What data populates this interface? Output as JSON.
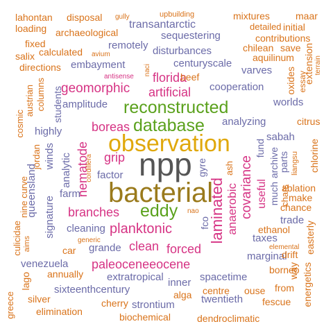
{
  "colors": {
    "orange": "#d9731a",
    "purple": "#6b6ba8",
    "magenta": "#d63384",
    "green": "#5aa11c",
    "gold": "#e0a80c",
    "gray": "#555555",
    "brown": "#9a7a1c"
  },
  "words": {
    "npp": "npp",
    "bacterial": "bacterial",
    "observation": "observation",
    "reconstructed": "reconstructed",
    "database": "database",
    "eddy": "eddy",
    "planktonic": "planktonic",
    "laminated": "laminated",
    "covariance": "covariance",
    "geomorphic": "geomorphic",
    "florida": "florida",
    "artificial": "artificial",
    "boreas": "boreas",
    "grip": "grip",
    "nematode": "nematode",
    "branches": "branches",
    "clean": "clean",
    "forced": "forced",
    "anaerobic": "anaerobic",
    "useful": "useful",
    "paleoceneeocene": "paleoceneeocene",
    "transantarctic": "transantarctic",
    "sequestering": "sequestering",
    "remotely": "remotely",
    "disturbances": "disturbances",
    "centuryscale": "centuryscale",
    "embayment": "embayment",
    "varves": "varves",
    "cooperation": "cooperation",
    "amplitude": "amplitude",
    "analyzing": "analyzing",
    "worlds": "worlds",
    "sabah": "sabah",
    "highly": "highly",
    "analytic": "analytic",
    "factor": "factor",
    "farm": "farm",
    "signature": "signature",
    "cleaning": "cleaning",
    "grande": "grande",
    "venezuela": "venezuela",
    "sixteenthcentury": "sixteenthcentury",
    "strontium": "strontium",
    "twentieth": "twentieth",
    "spacetime": "spacetime",
    "inner": "inner",
    "extratropical": "extratropical",
    "marginal": "marginal",
    "taxes": "taxes",
    "trade": "trade",
    "fund": "fund",
    "archive": "archive",
    "much": "much",
    "parts": "parts",
    "gyre": "gyre",
    "fco": "fco",
    "winds": "winds",
    "queensland": "queensland",
    "students": "students",
    "lahontan": "lahontan",
    "loading": "loading",
    "disposal": "disposal",
    "gully": "gully",
    "upbuilding": "upbuilding",
    "mixtures": "mixtures",
    "maar": "maar",
    "detailed": "detailed",
    "initial": "initial",
    "archaeological": "archaeological",
    "contributions": "contributions",
    "fixed": "fixed",
    "chilean": "chilean",
    "save": "save",
    "salix": "salix",
    "calculated": "calculated",
    "avium": "avium",
    "aquilinum": "aquilinum",
    "directions": "directions",
    "extension": "extension",
    "terrain": "terrain",
    "antisense": "antisense",
    "naci": "naci",
    "beef": "beef",
    "columns": "columns",
    "austrian": "austrian",
    "oxides": "oxides",
    "essay": "essay",
    "cosmic": "cosmic",
    "citrus": "citrus",
    "jordan": "jordan",
    "cordillera": "cordillera",
    "ash": "ash",
    "chars": "chars",
    "liangsu": "liangsu",
    "chlorine": "chlorine",
    "ablation": "ablation",
    "make": "make",
    "chance": "chance",
    "nine_curve": "nine curve",
    "culicidae": "culicidae",
    "nao": "nao",
    "ethanol": "ethanol",
    "easterly": "easterly",
    "aims": "aims",
    "generic": "generic",
    "car": "car",
    "elemental": "elemental",
    "drift": "drift",
    "lago": "lago",
    "annually": "annually",
    "borneo": "borneo",
    "way": "way",
    "greece": "greece",
    "silver": "silver",
    "cherry": "cherry",
    "alga": "alga",
    "centre": "centre",
    "ouse": "ouse",
    "from": "from",
    "fescue": "fescue",
    "energetics": "energetics",
    "elimination": "elimination",
    "biochemical": "biochemical",
    "dendroclimatic": "dendroclimatic"
  }
}
